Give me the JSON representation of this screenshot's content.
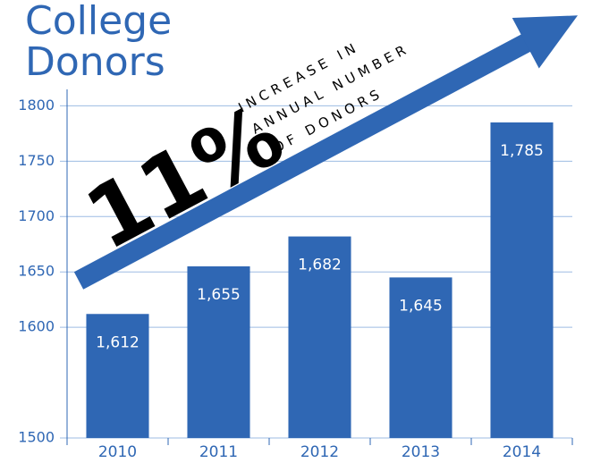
{
  "chart_data": {
    "type": "bar",
    "title_lines": [
      "College",
      "Donors"
    ],
    "annotation": "11%",
    "annotation_lines": [
      "INCREASE IN",
      "ANNUAL NUMBER",
      "OF DONORS"
    ],
    "categories": [
      "2010",
      "2011",
      "2012",
      "2013",
      "2014"
    ],
    "values": [
      1612,
      1655,
      1682,
      1645,
      1785
    ],
    "value_labels": [
      "1,612",
      "1,655",
      "1,682",
      "1,645",
      "1,785"
    ],
    "color": "#2f67b4",
    "ylim": [
      1500,
      1810
    ],
    "yticks": [
      1500,
      1600,
      1650,
      1700,
      1750,
      1800
    ],
    "grid": true
  }
}
